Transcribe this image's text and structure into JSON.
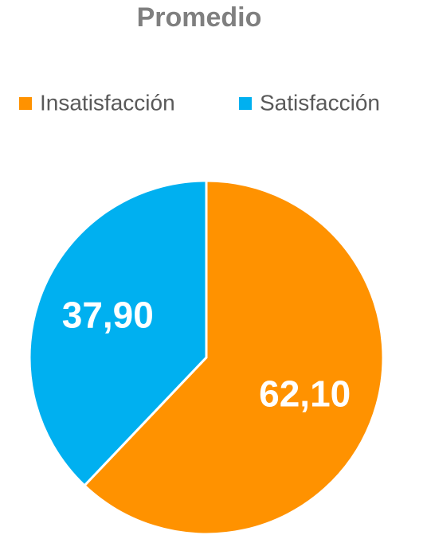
{
  "chart_data": {
    "type": "pie",
    "title": "Promedio",
    "categories": [
      "Insatisfacción",
      "Satisfacción"
    ],
    "values": [
      62.1,
      37.9
    ],
    "value_labels": [
      "62,10",
      "37,90"
    ],
    "colors": [
      "#ff9200",
      "#00b0f0"
    ],
    "legend": "top"
  }
}
